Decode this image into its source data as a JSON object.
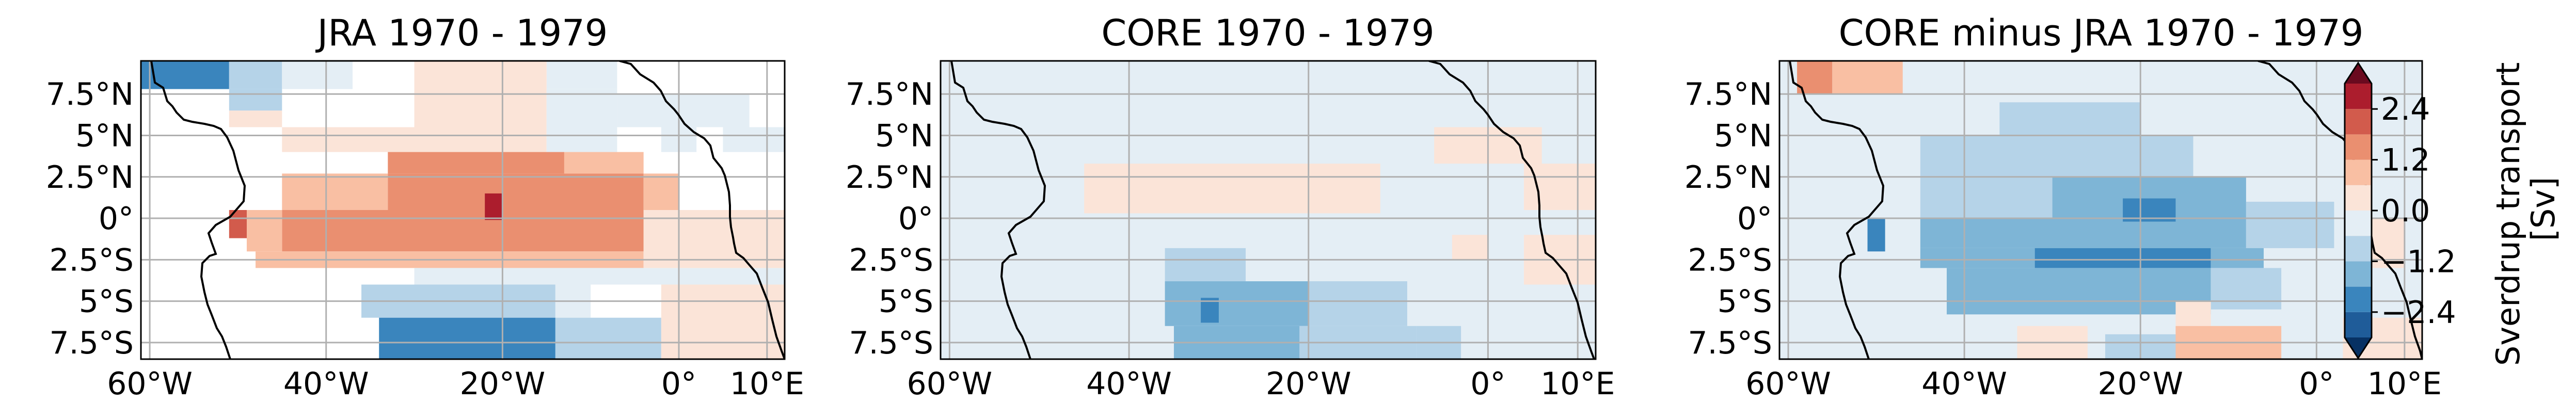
{
  "chart_data": [
    {
      "type": "heatmap",
      "title": "JRA 1970 - 1979",
      "xlim": [
        -61,
        12
      ],
      "ylim": [
        -8.5,
        9.5
      ],
      "x_ticks": [
        -60,
        -40,
        -20,
        0,
        10
      ],
      "x_tick_labels": [
        "60°W",
        "40°W",
        "20°W",
        "0°",
        "10°E"
      ],
      "y_ticks": [
        7.5,
        5,
        2.5,
        0,
        -2.5,
        -5,
        -7.5
      ],
      "y_tick_labels": [
        "7.5°N",
        "5°N",
        "2.5°N",
        "0°",
        "2.5°S",
        "5°S",
        "7.5°S"
      ],
      "grid": true,
      "cells": [
        {
          "lon0": -61,
          "lon1": -51,
          "lat0": 7.8,
          "lat1": 9.5,
          "v": -1.8
        },
        {
          "lon0": -51,
          "lon1": -45,
          "lat0": 7.8,
          "lat1": 9.5,
          "v": -0.6
        },
        {
          "lon0": -45,
          "lon1": -37,
          "lat0": 7.8,
          "lat1": 9.5,
          "v": -0.2
        },
        {
          "lon0": -15,
          "lon1": -7,
          "lat0": 7.8,
          "lat1": 9.5,
          "v": -0.2
        },
        {
          "lon0": -51,
          "lon1": -45,
          "lat0": 6.5,
          "lat1": 7.8,
          "v": -0.6
        },
        {
          "lon0": -51,
          "lon1": -45,
          "lat0": 5.5,
          "lat1": 6.5,
          "v": 0.3
        },
        {
          "lon0": -30,
          "lon1": -15,
          "lat0": 4,
          "lat1": 9.5,
          "v": 0.3
        },
        {
          "lon0": -15,
          "lon1": -7,
          "lat0": 4,
          "lat1": 7.8,
          "v": -0.2
        },
        {
          "lon0": -45,
          "lon1": -30,
          "lat0": 4,
          "lat1": 5.5,
          "v": 0.3
        },
        {
          "lon0": -7,
          "lon1": 8,
          "lat0": 5.5,
          "lat1": 7.5,
          "v": -0.2
        },
        {
          "lon0": -2,
          "lon1": 2,
          "lat0": 4,
          "lat1": 5.5,
          "v": -0.2
        },
        {
          "lon0": 5,
          "lon1": 12,
          "lat0": 4,
          "lat1": 5.5,
          "v": -0.2
        },
        {
          "lon0": -45,
          "lon1": -33,
          "lat0": 0.5,
          "lat1": 2.7,
          "v": 0.7
        },
        {
          "lon0": -33,
          "lon1": -13,
          "lat0": 2.7,
          "lat1": 4,
          "v": 1.7
        },
        {
          "lon0": -13,
          "lon1": -4,
          "lat0": 2.7,
          "lat1": 4,
          "v": 0.7
        },
        {
          "lon0": -33,
          "lon1": -4,
          "lat0": 0.5,
          "lat1": 2.7,
          "v": 1.7
        },
        {
          "lon0": -45,
          "lon1": -4,
          "lat0": -2,
          "lat1": 0.5,
          "v": 1.7
        },
        {
          "lon0": -22,
          "lon1": -20,
          "lat0": -0.1,
          "lat1": 1.5,
          "v": 2.6
        },
        {
          "lon0": -4,
          "lon1": 0,
          "lat0": 0.5,
          "lat1": 2.7,
          "v": 0.7
        },
        {
          "lon0": -4,
          "lon1": 0,
          "lat0": -2,
          "lat1": 0.5,
          "v": 0.7
        },
        {
          "lon0": -49,
          "lon1": -45,
          "lat0": -2,
          "lat1": 0.5,
          "v": 0.7
        },
        {
          "lon0": -51,
          "lon1": -49,
          "lat0": -1.2,
          "lat1": 0.5,
          "v": 2.2
        },
        {
          "lon0": -48,
          "lon1": -4,
          "lat0": -3,
          "lat1": -2,
          "v": 0.7
        },
        {
          "lon0": -30,
          "lon1": 12,
          "lat0": -4,
          "lat1": -3,
          "v": -0.2
        },
        {
          "lon0": -4,
          "lon1": 12,
          "lat0": -3,
          "lat1": 0.5,
          "v": 0.3
        },
        {
          "lon0": -36,
          "lon1": -14,
          "lat0": -6,
          "lat1": -4,
          "v": -1.2
        },
        {
          "lon0": -14,
          "lon1": -10,
          "lat0": -6,
          "lat1": -4,
          "v": -0.2
        },
        {
          "lon0": -34,
          "lon1": -14,
          "lat0": -8.5,
          "lat1": -6,
          "v": -1.8
        },
        {
          "lon0": -14,
          "lon1": -2,
          "lat0": -8.5,
          "lat1": -6,
          "v": -0.6
        },
        {
          "lon0": -2,
          "lon1": 12,
          "lat0": -8.5,
          "lat1": -4,
          "v": 0.3
        }
      ]
    },
    {
      "type": "heatmap",
      "title": "CORE 1970 - 1979",
      "xlim": [
        -61,
        12
      ],
      "ylim": [
        -8.5,
        9.5
      ],
      "x_ticks": [
        -60,
        -40,
        -20,
        0,
        10
      ],
      "x_tick_labels": [
        "60°W",
        "40°W",
        "20°W",
        "0°",
        "10°E"
      ],
      "y_ticks": [
        7.5,
        5,
        2.5,
        0,
        -2.5,
        -5,
        -7.5
      ],
      "y_tick_labels": [
        "7.5°N",
        "5°N",
        "2.5°N",
        "0°",
        "2.5°S",
        "5°S",
        "7.5°S"
      ],
      "grid": true,
      "cells": [
        {
          "lon0": -61,
          "lon1": 12,
          "lat0": -8.5,
          "lat1": 9.5,
          "v": -0.15
        },
        {
          "lon0": -45,
          "lon1": -12,
          "lat0": 0.3,
          "lat1": 3.3,
          "v": 0.25
        },
        {
          "lon0": -6,
          "lon1": 6,
          "lat0": 3.3,
          "lat1": 5.5,
          "v": 0.25
        },
        {
          "lon0": 4,
          "lon1": 12,
          "lat0": 0.5,
          "lat1": 3.3,
          "v": 0.25
        },
        {
          "lon0": -4,
          "lon1": 0,
          "lat0": -2.5,
          "lat1": -1,
          "v": 0.25
        },
        {
          "lon0": 4,
          "lon1": 12,
          "lat0": -4,
          "lat1": -1,
          "v": 0.25
        },
        {
          "lon0": -36,
          "lon1": -27,
          "lat0": -3.8,
          "lat1": -1.8,
          "v": -0.6
        },
        {
          "lon0": -36,
          "lon1": -20,
          "lat0": -6.5,
          "lat1": -3.8,
          "v": -1.3
        },
        {
          "lon0": -20,
          "lon1": -9,
          "lat0": -6.5,
          "lat1": -3.8,
          "v": -0.6
        },
        {
          "lon0": -35,
          "lon1": -21,
          "lat0": -8.5,
          "lat1": -6.5,
          "v": -1.3
        },
        {
          "lon0": -32,
          "lon1": -30,
          "lat0": -6.3,
          "lat1": -4.8,
          "v": -2.2
        },
        {
          "lon0": -21,
          "lon1": -8,
          "lat0": -8.5,
          "lat1": -6.5,
          "v": -0.6
        },
        {
          "lon0": -8,
          "lon1": -3,
          "lat0": -8.5,
          "lat1": -6.5,
          "v": -0.6
        },
        {
          "lon0": -3,
          "lon1": 12,
          "lat0": -8.5,
          "lat1": -6,
          "v": -0.15
        }
      ]
    },
    {
      "type": "heatmap",
      "title": "CORE minus JRA 1970 - 1979",
      "xlim": [
        -61,
        12
      ],
      "ylim": [
        -8.5,
        9.5
      ],
      "x_ticks": [
        -60,
        -40,
        -20,
        0,
        10
      ],
      "x_tick_labels": [
        "60°W",
        "40°W",
        "20°W",
        "0°",
        "10°E"
      ],
      "y_ticks": [
        7.5,
        5,
        2.5,
        0,
        -2.5,
        -5,
        -7.5
      ],
      "y_tick_labels": [
        "7.5°N",
        "5°N",
        "2.5°N",
        "0°",
        "2.5°S",
        "5°S",
        "7.5°S"
      ],
      "grid": true,
      "cells": [
        {
          "lon0": -61,
          "lon1": 12,
          "lat0": -8.5,
          "lat1": 9.5,
          "v": -0.2
        },
        {
          "lon0": -59,
          "lon1": -55,
          "lat0": 7.5,
          "lat1": 9.5,
          "v": 1.8
        },
        {
          "lon0": -55,
          "lon1": -47,
          "lat0": 7.5,
          "lat1": 9.5,
          "v": 0.7
        },
        {
          "lon0": -45,
          "lon1": -14,
          "lat0": 0,
          "lat1": 5,
          "v": -0.7
        },
        {
          "lon0": -36,
          "lon1": -20,
          "lat0": 5,
          "lat1": 7,
          "v": -0.7
        },
        {
          "lon0": -14,
          "lon1": -8,
          "lat0": 2.5,
          "lat1": 5,
          "v": -0.3
        },
        {
          "lon0": -30,
          "lon1": -8,
          "lat0": 0,
          "lat1": 2.5,
          "v": -1.3
        },
        {
          "lon0": -45,
          "lon1": -8,
          "lat0": -1.8,
          "lat1": 0,
          "v": -1.3
        },
        {
          "lon0": -8,
          "lon1": 2,
          "lat0": -1.8,
          "lat1": 1,
          "v": -0.7
        },
        {
          "lon0": -32,
          "lon1": -12,
          "lat0": -3,
          "lat1": -1.8,
          "v": -2.3
        },
        {
          "lon0": -22,
          "lon1": -16,
          "lat0": -0.2,
          "lat1": 1.2,
          "v": -2.3
        },
        {
          "lon0": -51,
          "lon1": -49,
          "lat0": -2,
          "lat1": 0,
          "v": -1.8
        },
        {
          "lon0": -45,
          "lon1": -32,
          "lat0": -3,
          "lat1": -1.8,
          "v": -1.3
        },
        {
          "lon0": -12,
          "lon1": -6,
          "lat0": -3,
          "lat1": -1.8,
          "v": -1.3
        },
        {
          "lon0": -42,
          "lon1": -12,
          "lat0": -5.8,
          "lat1": -3,
          "v": -1.3
        },
        {
          "lon0": -12,
          "lon1": -4,
          "lat0": -5.5,
          "lat1": -3,
          "v": -0.7
        },
        {
          "lon0": 4,
          "lon1": 10,
          "lat0": -3,
          "lat1": 0,
          "v": 0.35
        },
        {
          "lon0": -34,
          "lon1": -26,
          "lat0": -8.5,
          "lat1": -6.5,
          "v": 0.35
        },
        {
          "lon0": -24,
          "lon1": -16,
          "lat0": -8.5,
          "lat1": -7,
          "v": -0.7
        },
        {
          "lon0": -14,
          "lon1": -6,
          "lat0": -8.5,
          "lat1": -7,
          "v": -0.7
        },
        {
          "lon0": -16,
          "lon1": -12,
          "lat0": -6.5,
          "lat1": -5,
          "v": 0.35
        },
        {
          "lon0": -16,
          "lon1": -4,
          "lat0": -8.5,
          "lat1": -6.5,
          "v": 0.8
        },
        {
          "lon0": 3,
          "lon1": 12,
          "lat0": -8.5,
          "lat1": -6,
          "v": 0.35
        }
      ]
    }
  ],
  "colorbar": {
    "label_line1": "Sverdrup transport",
    "label_line2": "[Sv]",
    "tick_values": [
      2.4,
      1.2,
      0.0,
      -1.2,
      -2.4
    ],
    "tick_labels": [
      "2.4",
      "1.2",
      "0.0",
      "−1.2",
      "−2.4"
    ],
    "vmin": -3.0,
    "vmax": 3.0,
    "extend": "both",
    "colors": [
      "#1f5c99",
      "#3a85bd",
      "#7eb5d6",
      "#b5d3e8",
      "#e4eef5",
      "#fbe4d8",
      "#f9bfa3",
      "#ea8f70",
      "#d25b4c",
      "#ac1d2d"
    ],
    "extend_low_color": "#073163",
    "extend_high_color": "#6a0a1f"
  }
}
